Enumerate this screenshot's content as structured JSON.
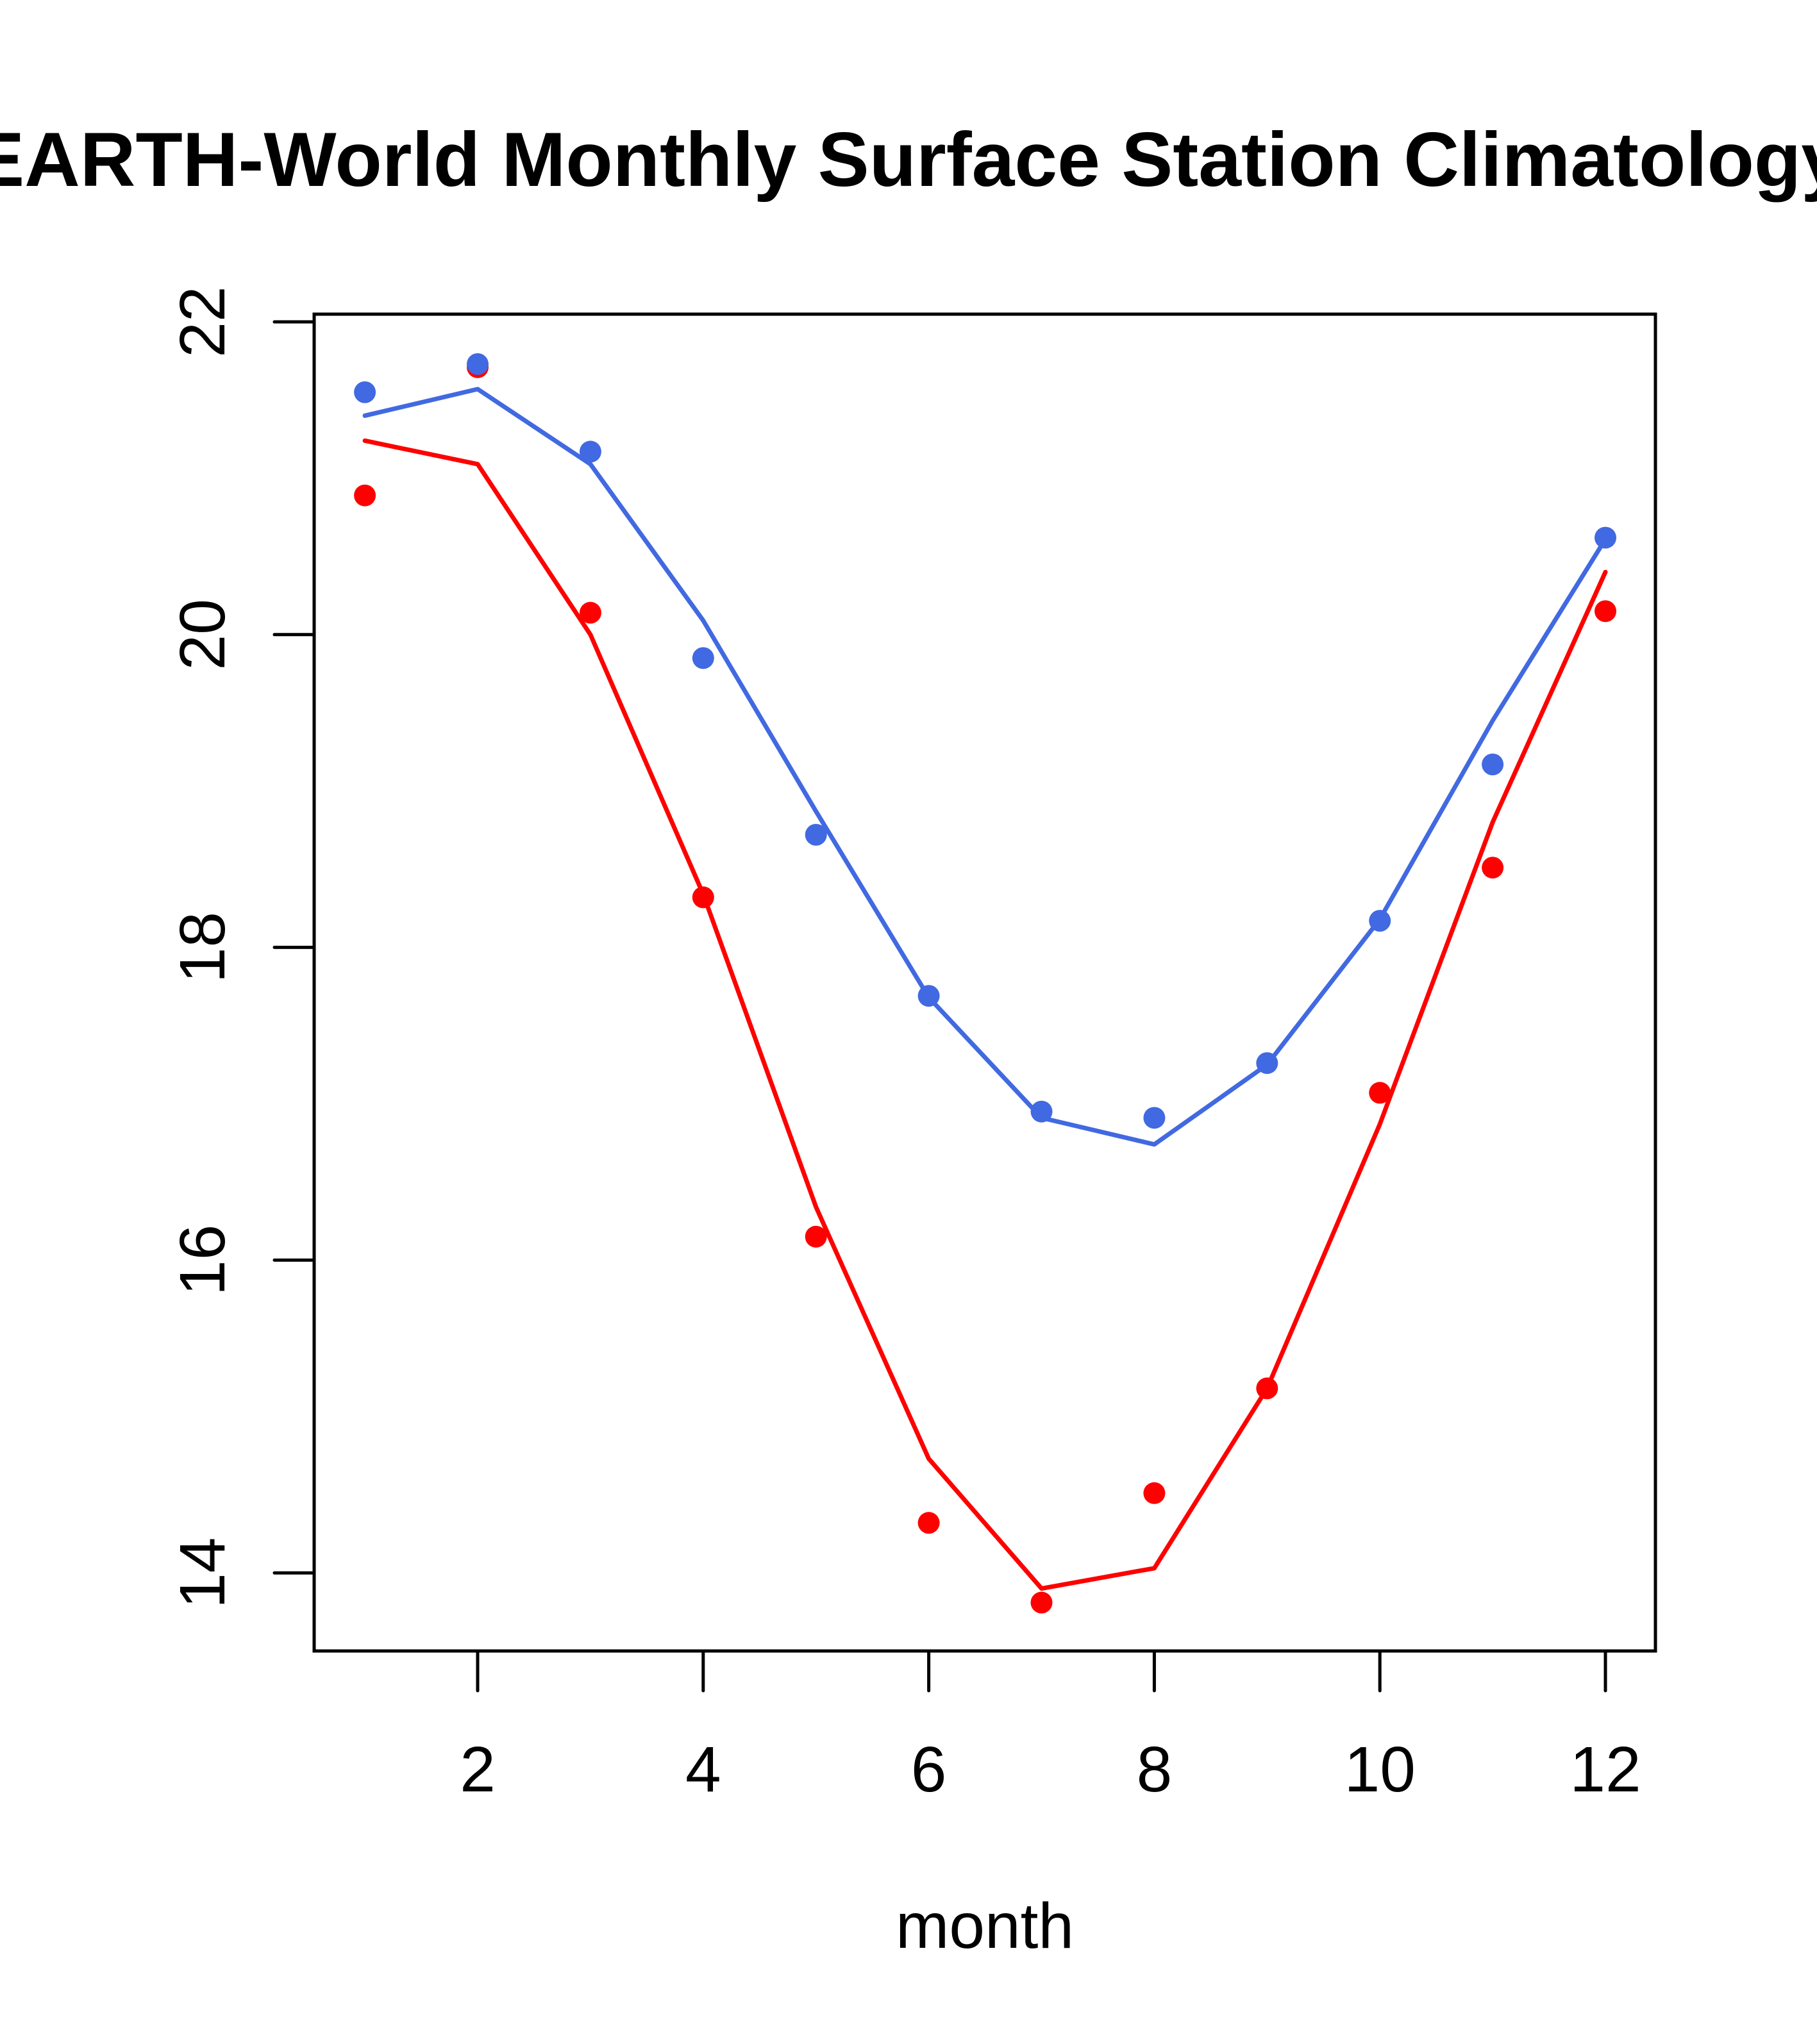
{
  "chart_data": {
    "type": "line",
    "title": "EARTH-World Monthly Surface Station Climatology",
    "xlabel": "month",
    "ylabel": "",
    "xlim": [
      0.72,
      12.45
    ],
    "ylim": [
      13.5,
      22.05
    ],
    "x_ticks": [
      2,
      4,
      6,
      8,
      10,
      12
    ],
    "y_ticks": [
      14,
      16,
      18,
      20,
      22
    ],
    "x_tick_labels": [
      "2",
      "4",
      "6",
      "8",
      "10",
      "12"
    ],
    "y_tick_labels": [
      "14",
      "16",
      "18",
      "20",
      "22"
    ],
    "grid": false,
    "legend": "none",
    "x": [
      1,
      2,
      3,
      4,
      5,
      6,
      7,
      8,
      9,
      10,
      11,
      12
    ],
    "series": [
      {
        "name": "red-points",
        "kind": "points",
        "color": "#ff0000",
        "values": [
          20.89,
          21.71,
          20.14,
          18.32,
          16.15,
          14.32,
          13.81,
          14.51,
          15.18,
          17.07,
          18.51,
          20.15
        ]
      },
      {
        "name": "red-line",
        "kind": "line",
        "color": "#ff0000",
        "values": [
          21.24,
          21.09,
          20.0,
          18.34,
          16.34,
          14.73,
          13.9,
          14.03,
          15.18,
          16.87,
          18.8,
          20.4
        ]
      },
      {
        "name": "blue-points",
        "kind": "points",
        "color": "#4169e1",
        "values": [
          21.55,
          21.73,
          21.17,
          19.85,
          18.72,
          17.69,
          16.95,
          16.91,
          17.26,
          18.17,
          19.17,
          20.62
        ]
      },
      {
        "name": "blue-line",
        "kind": "line",
        "color": "#4169e1",
        "values": [
          21.4,
          21.57,
          21.09,
          20.09,
          18.87,
          17.68,
          16.91,
          16.74,
          17.25,
          18.18,
          19.45,
          20.61
        ]
      }
    ]
  }
}
